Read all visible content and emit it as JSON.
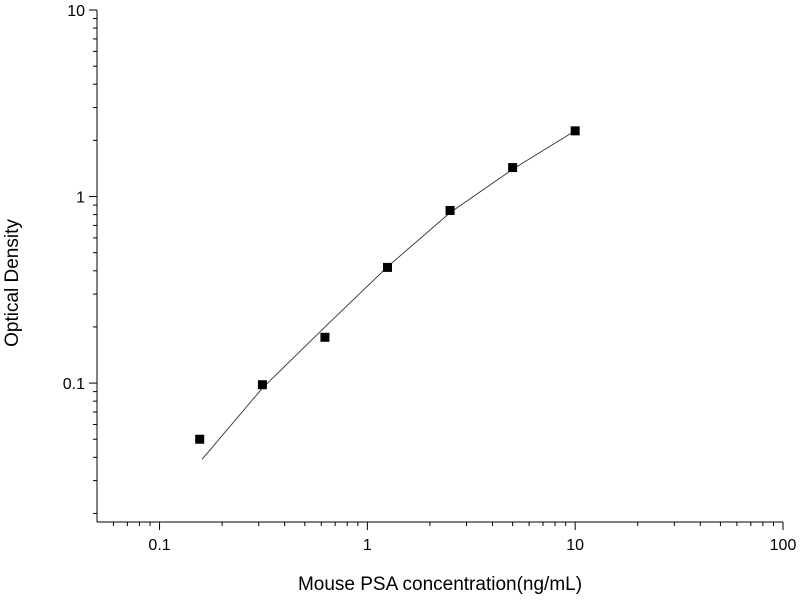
{
  "chart_data": {
    "type": "scatter",
    "x_label": "Mouse PSA concentration(ng/mL)",
    "y_label": "Optical Density",
    "log_x": true,
    "log_y": true,
    "xlim": [
      0.05,
      100
    ],
    "ylim": [
      0.018,
      10
    ],
    "xticks": [
      0.1,
      1,
      10,
      100
    ],
    "yticks": [
      0.1,
      1,
      10
    ],
    "xminorticks": [
      0.06,
      0.07,
      0.08,
      0.09,
      0.2,
      0.3,
      0.4,
      0.5,
      0.6,
      0.7,
      0.8,
      0.9,
      2,
      3,
      4,
      5,
      6,
      7,
      8,
      9,
      20,
      30,
      40,
      50,
      60,
      70,
      80,
      90
    ],
    "yminorticks": [
      0.02,
      0.03,
      0.04,
      0.05,
      0.06,
      0.07,
      0.08,
      0.09,
      0.2,
      0.3,
      0.4,
      0.5,
      0.6,
      0.7,
      0.8,
      0.9,
      2,
      3,
      4,
      5,
      6,
      7,
      8,
      9
    ],
    "points": {
      "color": "#000000",
      "x": [
        0.156,
        0.3125,
        0.625,
        1.25,
        2.5,
        5,
        10
      ],
      "values": [
        0.05,
        0.098,
        0.176,
        0.417,
        0.842,
        1.43,
        2.25
      ]
    },
    "fit": {
      "color": "#333333",
      "x": [
        0.16,
        0.3125,
        0.625,
        1.25,
        2.5,
        5,
        10
      ],
      "values": [
        0.039,
        0.094,
        0.2,
        0.42,
        0.82,
        1.4,
        2.25
      ]
    }
  }
}
